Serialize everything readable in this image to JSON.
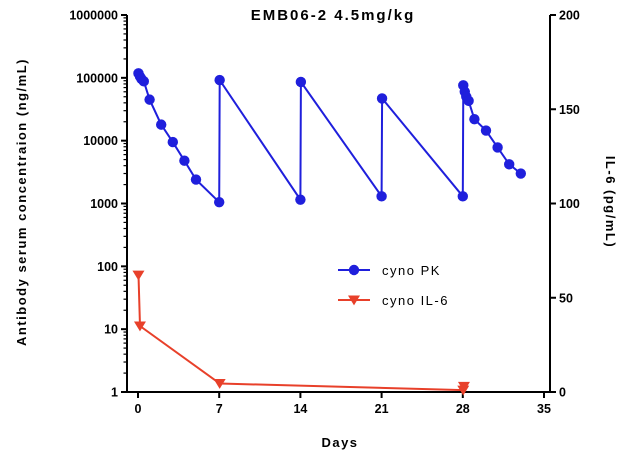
{
  "chart_data": {
    "type": "line",
    "title": "EMB06-2 4.5mg/kg",
    "xlabel": "Days",
    "ylabel_left": "Antibody serum concentraion (ng/mL)",
    "ylabel_right": "IL-6 (pg/mL)",
    "xlim": [
      0,
      35
    ],
    "x_ticks": [
      0,
      7,
      14,
      21,
      28,
      35
    ],
    "ylim_left": [
      1,
      1000000
    ],
    "y_scale_left": "log",
    "y_ticks_left": [
      "1",
      "10",
      "100",
      "1000",
      "10000",
      "100000",
      "1000000"
    ],
    "ylim_right": [
      0,
      200
    ],
    "y_ticks_right": [
      0,
      50,
      100,
      150,
      200
    ],
    "legend_position": "center-right",
    "grid": false,
    "series": [
      {
        "name": "cyno PK",
        "axis": "left",
        "color": "#1f1fdc",
        "marker": "circle",
        "points": [
          {
            "x": 0.04,
            "y": 118000
          },
          {
            "x": 0.17,
            "y": 105000
          },
          {
            "x": 0.3,
            "y": 96000
          },
          {
            "x": 0.5,
            "y": 88000
          },
          {
            "x": 1,
            "y": 45000
          },
          {
            "x": 2,
            "y": 18000
          },
          {
            "x": 3,
            "y": 9500
          },
          {
            "x": 4,
            "y": 4800
          },
          {
            "x": 5,
            "y": 2400
          },
          {
            "x": 7,
            "y": 1050
          },
          {
            "x": 7.04,
            "y": 92000
          },
          {
            "x": 14,
            "y": 1150
          },
          {
            "x": 14.04,
            "y": 86000
          },
          {
            "x": 21,
            "y": 1300
          },
          {
            "x": 21.04,
            "y": 47000
          },
          {
            "x": 28,
            "y": 1300
          },
          {
            "x": 28.04,
            "y": 76000
          },
          {
            "x": 28.17,
            "y": 60000
          },
          {
            "x": 28.3,
            "y": 50000
          },
          {
            "x": 28.5,
            "y": 43000
          },
          {
            "x": 29,
            "y": 22000
          },
          {
            "x": 30,
            "y": 14500
          },
          {
            "x": 31,
            "y": 7800
          },
          {
            "x": 32,
            "y": 4200
          },
          {
            "x": 33,
            "y": 3000
          }
        ]
      },
      {
        "name": "cyno IL-6",
        "axis": "right",
        "color": "#e8402a",
        "marker": "triangle-down",
        "points": [
          {
            "x": 0.04,
            "y": 62
          },
          {
            "x": 0.17,
            "y": 35
          },
          {
            "x": 7.04,
            "y": 4.5
          },
          {
            "x": 28.04,
            "y": 1
          },
          {
            "x": 28.1,
            "y": 3
          }
        ]
      }
    ]
  }
}
